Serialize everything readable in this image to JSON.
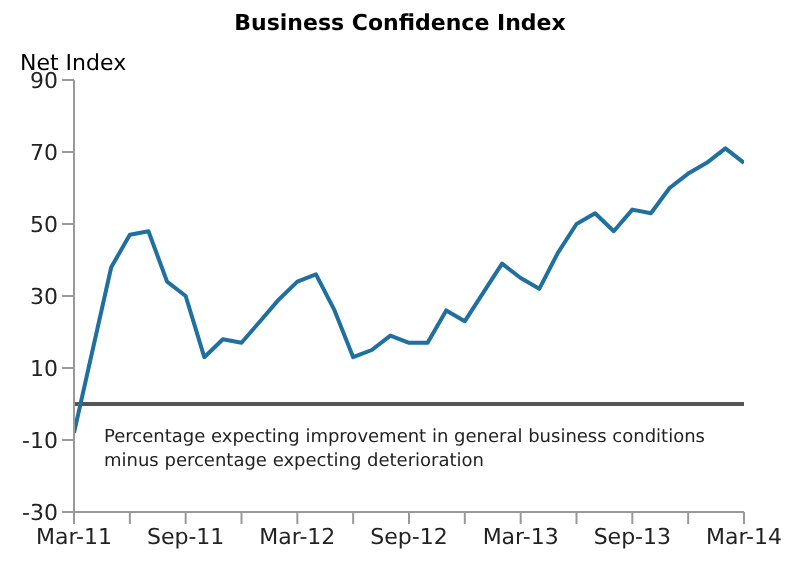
{
  "chart_data": {
    "type": "line",
    "title": "Business Confidence Index",
    "ylabel": "Net Index",
    "annotations": [
      "Percentage expecting improvement in general business conditions minus percentage expecting deterioration"
    ],
    "x": [
      "2011-03",
      "2011-04",
      "2011-05",
      "2011-06",
      "2011-07",
      "2011-08",
      "2011-09",
      "2011-10",
      "2011-11",
      "2011-12",
      "2012-01",
      "2012-02",
      "2012-03",
      "2012-04",
      "2012-05",
      "2012-06",
      "2012-07",
      "2012-08",
      "2012-09",
      "2012-10",
      "2012-11",
      "2012-12",
      "2013-01",
      "2013-02",
      "2013-03",
      "2013-04",
      "2013-05",
      "2013-06",
      "2013-07",
      "2013-08",
      "2013-09",
      "2013-10",
      "2013-11",
      "2013-12",
      "2014-01",
      "2014-02",
      "2014-03"
    ],
    "series": [
      {
        "color": "#1f6f9f",
        "values": [
          -8,
          15,
          38,
          47,
          48,
          34,
          30,
          13,
          18,
          17,
          23,
          29,
          34,
          36,
          26,
          13,
          15,
          19,
          17,
          17,
          26,
          23,
          31,
          39,
          35,
          32,
          42,
          50,
          53,
          48,
          54,
          53,
          60,
          64,
          67,
          71,
          67
        ]
      }
    ],
    "xlim": [
      "2011-03",
      "2014-03"
    ],
    "xticks": [
      {
        "value": "2011-03",
        "label": "Mar-11"
      },
      {
        "value": "2011-06",
        "label": null
      },
      {
        "value": "2011-09",
        "label": "Sep-11"
      },
      {
        "value": "2011-12",
        "label": null
      },
      {
        "value": "2012-03",
        "label": "Mar-12"
      },
      {
        "value": "2012-06",
        "label": null
      },
      {
        "value": "2012-09",
        "label": "Sep-12"
      },
      {
        "value": "2012-12",
        "label": null
      },
      {
        "value": "2013-03",
        "label": "Mar-13"
      },
      {
        "value": "2013-06",
        "label": null
      },
      {
        "value": "2013-09",
        "label": "Sep-13"
      },
      {
        "value": "2013-12",
        "label": null
      },
      {
        "value": "2014-03",
        "label": "Mar-14"
      }
    ],
    "ylim": [
      -30,
      90
    ],
    "yticks": [
      -30,
      -10,
      10,
      30,
      50,
      70,
      90
    ],
    "ref_lines": [
      {
        "axis": "y",
        "value": 0,
        "color": "#555555"
      }
    ],
    "grid": false,
    "marker": "none",
    "line_style": "solid"
  }
}
